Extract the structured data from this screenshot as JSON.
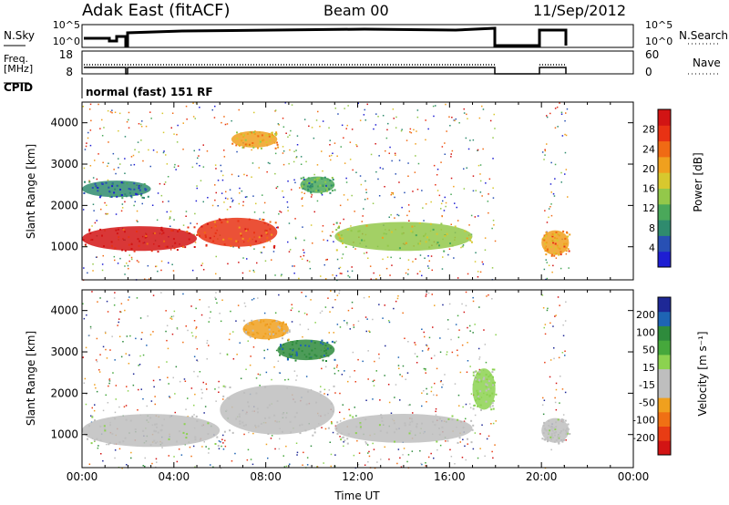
{
  "header": {
    "station": "Adak East (fitACF)",
    "beam": "Beam 00",
    "date": "11/Sep/2012"
  },
  "panels": {
    "nsky": {
      "label": "N.Sky",
      "tick_top": "10^5",
      "tick_bottom": "10^0",
      "right_tick_top": "10^5",
      "right_tick_bottom": "10^0",
      "right_label": "N.Search"
    },
    "freq": {
      "label": "Freq.",
      "unit": "[MHz]",
      "tick_top": "18",
      "tick_bottom": "8",
      "right_tick_top": "60",
      "right_tick_bottom": "0",
      "right_label": "Nave"
    },
    "cpid": {
      "label": "CPID",
      "value": "normal (fast) 151 RF"
    }
  },
  "colors": {
    "power": [
      "#1e1ed2",
      "#2850b4",
      "#2f8b6e",
      "#4aa85a",
      "#93c84a",
      "#d7c82e",
      "#f0a01e",
      "#f06a14",
      "#e83214",
      "#d21414"
    ],
    "velocity": [
      "#1e2896",
      "#1e64b4",
      "#2e8b3c",
      "#46a83c",
      "#8cd250",
      "#bebebe",
      "#bebebe",
      "#f0a01e",
      "#f07014",
      "#e83c14",
      "#d21414"
    ],
    "ground_scatter": "#bdbdbd"
  },
  "chart_data": [
    {
      "type": "heatmap",
      "name": "power",
      "ylabel": "Slant Range [km]",
      "y_ticks": [
        "1000",
        "2000",
        "3000",
        "4000"
      ],
      "ylim": [
        200,
        4500
      ],
      "colorbar": {
        "label": "Power [dB]",
        "ticks": [
          "4",
          "8",
          "12",
          "16",
          "20",
          "24",
          "28"
        ],
        "range": [
          0,
          30
        ]
      },
      "xlim": [
        "00:00",
        "24:00"
      ],
      "data_gaps": [
        [
          "18:00",
          "20:00"
        ],
        [
          "21:10",
          "24:00"
        ]
      ],
      "regions": [
        {
          "t": [
            0.0,
            5.0
          ],
          "range": [
            900,
            1500
          ],
          "value": 28
        },
        {
          "t": [
            5.0,
            8.5
          ],
          "range": [
            1000,
            1700
          ],
          "value": 24
        },
        {
          "t": [
            0.0,
            3.0
          ],
          "range": [
            2200,
            2600
          ],
          "value": 6
        },
        {
          "t": [
            6.5,
            8.5
          ],
          "range": [
            3400,
            3800
          ],
          "value": 18
        },
        {
          "t": [
            11.0,
            17.0
          ],
          "range": [
            900,
            1600
          ],
          "value": 14
        },
        {
          "t": [
            9.5,
            11.0
          ],
          "range": [
            2300,
            2700
          ],
          "value": 10
        },
        {
          "t": [
            20.0,
            21.2
          ],
          "range": [
            800,
            1400
          ],
          "value": 20
        }
      ]
    },
    {
      "type": "heatmap",
      "name": "velocity",
      "ylabel": "Slant Range [km]",
      "y_ticks": [
        "1000",
        "2000",
        "3000",
        "4000"
      ],
      "ylim": [
        200,
        4500
      ],
      "colorbar": {
        "label": "Velocity [m s⁻¹]",
        "ticks": [
          "200",
          "100",
          "50",
          "15",
          "-15",
          "-50",
          "-100",
          "-200"
        ],
        "range": [
          -250,
          250
        ]
      },
      "xlabel": "Time UT",
      "x_ticks": [
        "00:00",
        "04:00",
        "08:00",
        "12:00",
        "16:00",
        "20:00",
        "00:00"
      ],
      "xlim": [
        "00:00",
        "24:00"
      ],
      "data_gaps": [
        [
          "18:00",
          "20:00"
        ],
        [
          "21:10",
          "24:00"
        ]
      ],
      "regions": [
        {
          "t": [
            0.0,
            6.0
          ],
          "range": [
            700,
            1500
          ],
          "value": 0
        },
        {
          "t": [
            6.0,
            11.0
          ],
          "range": [
            1000,
            2200
          ],
          "value": 0
        },
        {
          "t": [
            8.5,
            11.0
          ],
          "range": [
            2800,
            3300
          ],
          "value": 150
        },
        {
          "t": [
            7.0,
            9.0
          ],
          "range": [
            3300,
            3800
          ],
          "value": -80
        },
        {
          "t": [
            11.0,
            17.0
          ],
          "range": [
            800,
            1500
          ],
          "value": 0
        },
        {
          "t": [
            17.0,
            18.0
          ],
          "range": [
            1600,
            2600
          ],
          "value": 30
        },
        {
          "t": [
            20.0,
            21.2
          ],
          "range": [
            800,
            1400
          ],
          "value": 0
        }
      ]
    }
  ]
}
